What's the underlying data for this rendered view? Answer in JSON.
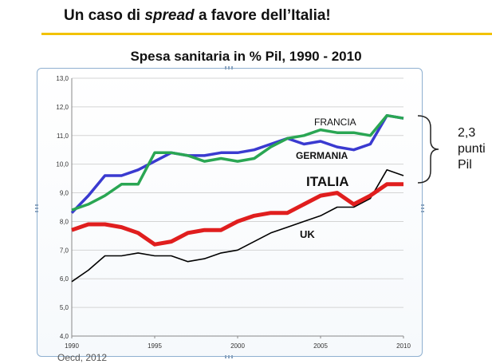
{
  "slide": {
    "title_before": "Un caso di ",
    "title_em": "spread",
    "title_after": " a favore dell’Italia!",
    "source": "Oecd, 2012"
  },
  "annotation": {
    "lines": [
      "2,3",
      "punti",
      "Pil"
    ]
  },
  "colors": {
    "accent_rule": "#f2c200",
    "francia": "#2aa653",
    "germania": "#3a3ad0",
    "italia": "#e01e1e",
    "uk": "#000000"
  },
  "chart_data": {
    "type": "line",
    "title": "Spesa sanitaria in % Pil, 1990 - 2010",
    "xlabel": "",
    "ylabel": "",
    "x": [
      1990,
      1991,
      1992,
      1993,
      1994,
      1995,
      1996,
      1997,
      1998,
      1999,
      2000,
      2001,
      2002,
      2003,
      2004,
      2005,
      2006,
      2007,
      2008,
      2009,
      2010
    ],
    "xticks": [
      "1990",
      "1995",
      "2000",
      "2005",
      "2010"
    ],
    "xlim": [
      1990,
      2010
    ],
    "ylim": [
      4.0,
      13.0
    ],
    "yticks": [
      "4,0",
      "5,0",
      "6,0",
      "7,0",
      "8,0",
      "9,0",
      "10,0",
      "11,0",
      "12,0",
      "13,0"
    ],
    "grid": true,
    "series": [
      {
        "name": "FRANCIA",
        "color": "#2aa653",
        "values": [
          8.4,
          8.6,
          8.9,
          9.3,
          9.3,
          10.4,
          10.4,
          10.3,
          10.1,
          10.2,
          10.1,
          10.2,
          10.6,
          10.9,
          11.0,
          11.2,
          11.1,
          11.1,
          11.0,
          11.7,
          11.6
        ]
      },
      {
        "name": "GERMANIA",
        "color": "#3a3ad0",
        "values": [
          8.3,
          8.9,
          9.6,
          9.6,
          9.8,
          10.1,
          10.4,
          10.3,
          10.3,
          10.4,
          10.4,
          10.5,
          10.7,
          10.9,
          10.7,
          10.8,
          10.6,
          10.5,
          10.7,
          11.7,
          11.6
        ]
      },
      {
        "name": "ITALIA",
        "color": "#e01e1e",
        "values": [
          7.7,
          7.9,
          7.9,
          7.8,
          7.6,
          7.2,
          7.3,
          7.6,
          7.7,
          7.7,
          8.0,
          8.2,
          8.3,
          8.3,
          8.6,
          8.9,
          9.0,
          8.6,
          8.9,
          9.3,
          9.3
        ]
      },
      {
        "name": "UK",
        "color": "#000000",
        "values": [
          5.9,
          6.3,
          6.8,
          6.8,
          6.9,
          6.8,
          6.8,
          6.6,
          6.7,
          6.9,
          7.0,
          7.3,
          7.6,
          7.8,
          8.0,
          8.2,
          8.5,
          8.5,
          8.8,
          9.8,
          9.6
        ]
      }
    ]
  }
}
